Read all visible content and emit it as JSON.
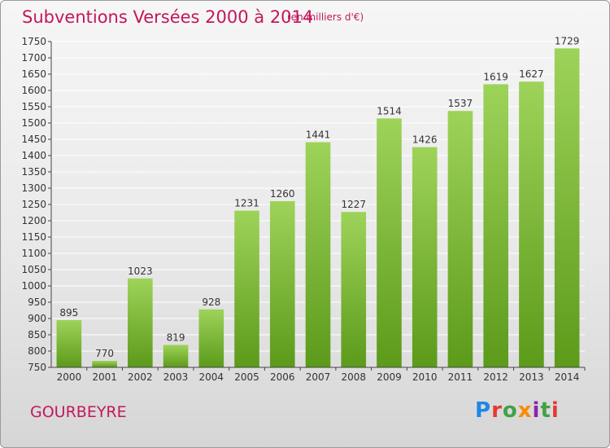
{
  "title": "Subventions Versées 2000 à 2014",
  "subtitle": "(en milliers d'€)",
  "commune": "GOURBEYRE",
  "logo": {
    "text": "Proxiti",
    "letters": [
      "P",
      "r",
      "o",
      "x",
      "i",
      "t",
      "i"
    ],
    "colors": [
      "#1e88e5",
      "#e53935",
      "#43a047",
      "#fb8c00",
      "#8e24aa",
      "#43a047",
      "#e53935"
    ]
  },
  "colors": {
    "accent": "#c2185b",
    "bar_top": "#9ed35a",
    "bar_bottom": "#5c9a1a",
    "grid": "#ffffff"
  },
  "chart_data": {
    "type": "bar",
    "categories": [
      "2000",
      "2001",
      "2002",
      "2003",
      "2004",
      "2005",
      "2006",
      "2007",
      "2008",
      "2009",
      "2010",
      "2011",
      "2012",
      "2013",
      "2014"
    ],
    "values": [
      895,
      770,
      1023,
      819,
      928,
      1231,
      1260,
      1441,
      1227,
      1514,
      1426,
      1537,
      1619,
      1627,
      1729
    ],
    "ylim": [
      750,
      1750
    ],
    "ytick_step": 50,
    "grid": true,
    "data_labels": true
  }
}
